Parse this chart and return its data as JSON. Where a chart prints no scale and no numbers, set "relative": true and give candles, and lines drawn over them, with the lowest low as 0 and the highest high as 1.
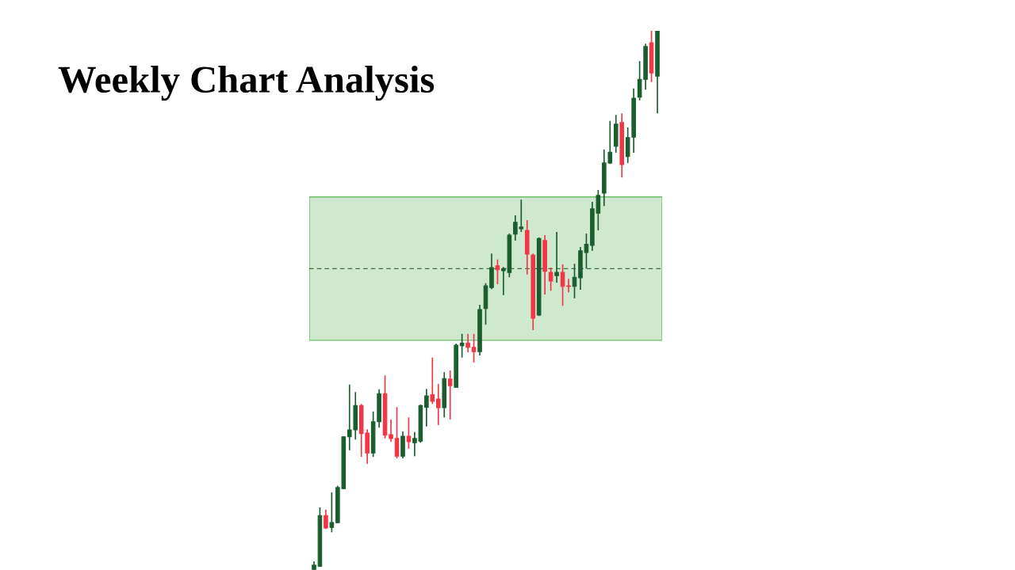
{
  "chart_data": {
    "type": "candlestick",
    "title": "Weekly Chart Analysis",
    "relative": true,
    "categories": [
      null,
      null,
      null,
      null,
      null,
      null,
      null,
      null,
      null,
      null,
      null,
      null,
      null,
      null,
      null,
      null,
      null,
      null,
      null,
      null,
      null,
      null,
      null,
      null,
      null,
      null,
      null,
      null,
      null,
      null,
      null,
      null,
      null,
      null,
      null,
      null,
      null,
      null,
      null,
      null,
      null,
      null,
      null,
      null,
      null,
      null,
      null,
      null,
      null,
      null,
      null,
      null,
      null,
      null,
      null,
      null,
      null,
      null,
      null
    ],
    "ohlc": [
      [
        0.001,
        0.016,
        0.0,
        0.009
      ],
      [
        0.007,
        0.116,
        0.006,
        0.101
      ],
      [
        0.101,
        0.112,
        0.076,
        0.078
      ],
      [
        0.079,
        0.144,
        0.07,
        0.088
      ],
      [
        0.088,
        0.156,
        0.087,
        0.153
      ],
      [
        0.151,
        0.248,
        0.15,
        0.247
      ],
      [
        0.247,
        0.344,
        0.222,
        0.26
      ],
      [
        0.26,
        0.33,
        0.242,
        0.305
      ],
      [
        0.305,
        0.308,
        0.21,
        0.253
      ],
      [
        0.254,
        0.261,
        0.197,
        0.217
      ],
      [
        0.217,
        0.294,
        0.21,
        0.275
      ],
      [
        0.275,
        0.335,
        0.264,
        0.327
      ],
      [
        0.327,
        0.361,
        0.244,
        0.25
      ],
      [
        0.251,
        0.279,
        0.238,
        0.244
      ],
      [
        0.244,
        0.302,
        0.207,
        0.211
      ],
      [
        0.211,
        0.257,
        0.207,
        0.248
      ],
      [
        0.248,
        0.283,
        0.225,
        0.238
      ],
      [
        0.236,
        0.256,
        0.211,
        0.244
      ],
      [
        0.239,
        0.307,
        0.236,
        0.305
      ],
      [
        0.302,
        0.336,
        0.266,
        0.323
      ],
      [
        0.325,
        0.394,
        0.308,
        0.313
      ],
      [
        0.317,
        0.345,
        0.269,
        0.301
      ],
      [
        0.301,
        0.367,
        0.283,
        0.355
      ],
      [
        0.354,
        0.37,
        0.279,
        0.342
      ],
      [
        0.339,
        0.42,
        0.338,
        0.417
      ],
      [
        0.416,
        0.438,
        0.394,
        0.421
      ],
      [
        0.421,
        0.438,
        0.404,
        0.413
      ],
      [
        0.413,
        0.438,
        0.385,
        0.405
      ],
      [
        0.405,
        0.492,
        0.398,
        0.483
      ],
      [
        0.485,
        0.532,
        0.455,
        0.527
      ],
      [
        0.524,
        0.587,
        0.521,
        0.561
      ],
      [
        0.564,
        0.576,
        0.53,
        0.557
      ],
      [
        0.555,
        0.562,
        0.51,
        0.559
      ],
      [
        0.552,
        0.624,
        0.543,
        0.621
      ],
      [
        0.623,
        0.658,
        0.611,
        0.645
      ],
      [
        0.633,
        0.687,
        0.627,
        0.636
      ],
      [
        0.63,
        0.649,
        0.548,
        0.586
      ],
      [
        0.584,
        0.587,
        0.445,
        0.467
      ],
      [
        0.473,
        0.617,
        0.471,
        0.615
      ],
      [
        0.611,
        0.621,
        0.511,
        0.554
      ],
      [
        0.552,
        0.561,
        0.518,
        0.536
      ],
      [
        0.546,
        0.627,
        0.533,
        0.552
      ],
      [
        0.552,
        0.567,
        0.49,
        0.526
      ],
      [
        0.527,
        0.54,
        0.515,
        0.526
      ],
      [
        0.526,
        0.568,
        0.504,
        0.543
      ],
      [
        0.542,
        0.599,
        0.52,
        0.592
      ],
      [
        0.589,
        0.624,
        0.559,
        0.604
      ],
      [
        0.602,
        0.683,
        0.592,
        0.67
      ],
      [
        0.662,
        0.705,
        0.63,
        0.695
      ],
      [
        0.699,
        0.78,
        0.675,
        0.755
      ],
      [
        0.755,
        0.833,
        0.753,
        0.775
      ],
      [
        0.786,
        0.844,
        0.774,
        0.827
      ],
      [
        0.83,
        0.847,
        0.728,
        0.752
      ],
      [
        0.767,
        0.821,
        0.755,
        0.802
      ],
      [
        0.803,
        0.893,
        0.774,
        0.875
      ],
      [
        0.877,
        0.944,
        0.871,
        0.91
      ],
      [
        0.91,
        0.976,
        0.891,
        0.971
      ],
      [
        0.978,
        1.0,
        0.905,
        0.922
      ],
      [
        0.916,
        1.0,
        0.847,
        1.0
      ]
    ],
    "colors": [
      "#1b5e2e",
      "#1b5e2e",
      "#f23645",
      "#1b5e2e",
      "#1b5e2e",
      "#1b5e2e",
      "#1b5e2e",
      "#1b5e2e",
      "#f23645",
      "#f23645",
      "#1b5e2e",
      "#1b5e2e",
      "#f23645",
      "#f23645",
      "#f23645",
      "#1b5e2e",
      "#f23645",
      "#1b5e2e",
      "#1b5e2e",
      "#1b5e2e",
      "#f23645",
      "#f23645",
      "#1b5e2e",
      "#f23645",
      "#1b5e2e",
      "#1b5e2e",
      "#f23645",
      "#f23645",
      "#1b5e2e",
      "#1b5e2e",
      "#1b5e2e",
      "#f23645",
      "#1b5e2e",
      "#1b5e2e",
      "#1b5e2e",
      "#1b5e2e",
      "#f23645",
      "#f23645",
      "#1b5e2e",
      "#f23645",
      "#f23645",
      "#1b5e2e",
      "#f23645",
      "#f23645",
      "#1b5e2e",
      "#1b5e2e",
      "#1b5e2e",
      "#1b5e2e",
      "#1b5e2e",
      "#1b5e2e",
      "#1b5e2e",
      "#1b5e2e",
      "#f23645",
      "#1b5e2e",
      "#1b5e2e",
      "#1b5e2e",
      "#1b5e2e",
      "#f23645",
      "#1b5e2e"
    ],
    "bands": [
      {
        "axis": "y",
        "from": 0.426,
        "to": 0.692,
        "color": "#cfe9cf"
      }
    ],
    "ref_lines": [
      {
        "axis": "y",
        "value": 0.559,
        "color": "#3d6b45",
        "line_style": "dashed"
      }
    ]
  }
}
